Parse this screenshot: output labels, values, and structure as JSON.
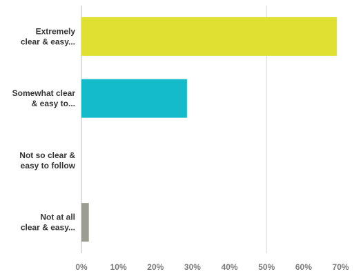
{
  "chart_data": {
    "type": "bar",
    "orientation": "horizontal",
    "categories": [
      [
        "Extremely",
        "clear & easy..."
      ],
      [
        "Somewhat clear",
        "& easy to..."
      ],
      [
        "Not so clear &",
        "easy to follow"
      ],
      [
        "Not at all",
        "clear & easy..."
      ]
    ],
    "values": [
      69,
      28.5,
      0,
      2
    ],
    "colors": [
      "#dfe032",
      "#14bccb",
      "#14bccb",
      "#9b9d92"
    ],
    "x_ticks": [
      "0%",
      "10%",
      "20%",
      "30%",
      "40%",
      "50%",
      "60%",
      "70%"
    ],
    "xlim": [
      0,
      75
    ],
    "grid": "x",
    "grid_at": [
      0,
      50
    ]
  }
}
